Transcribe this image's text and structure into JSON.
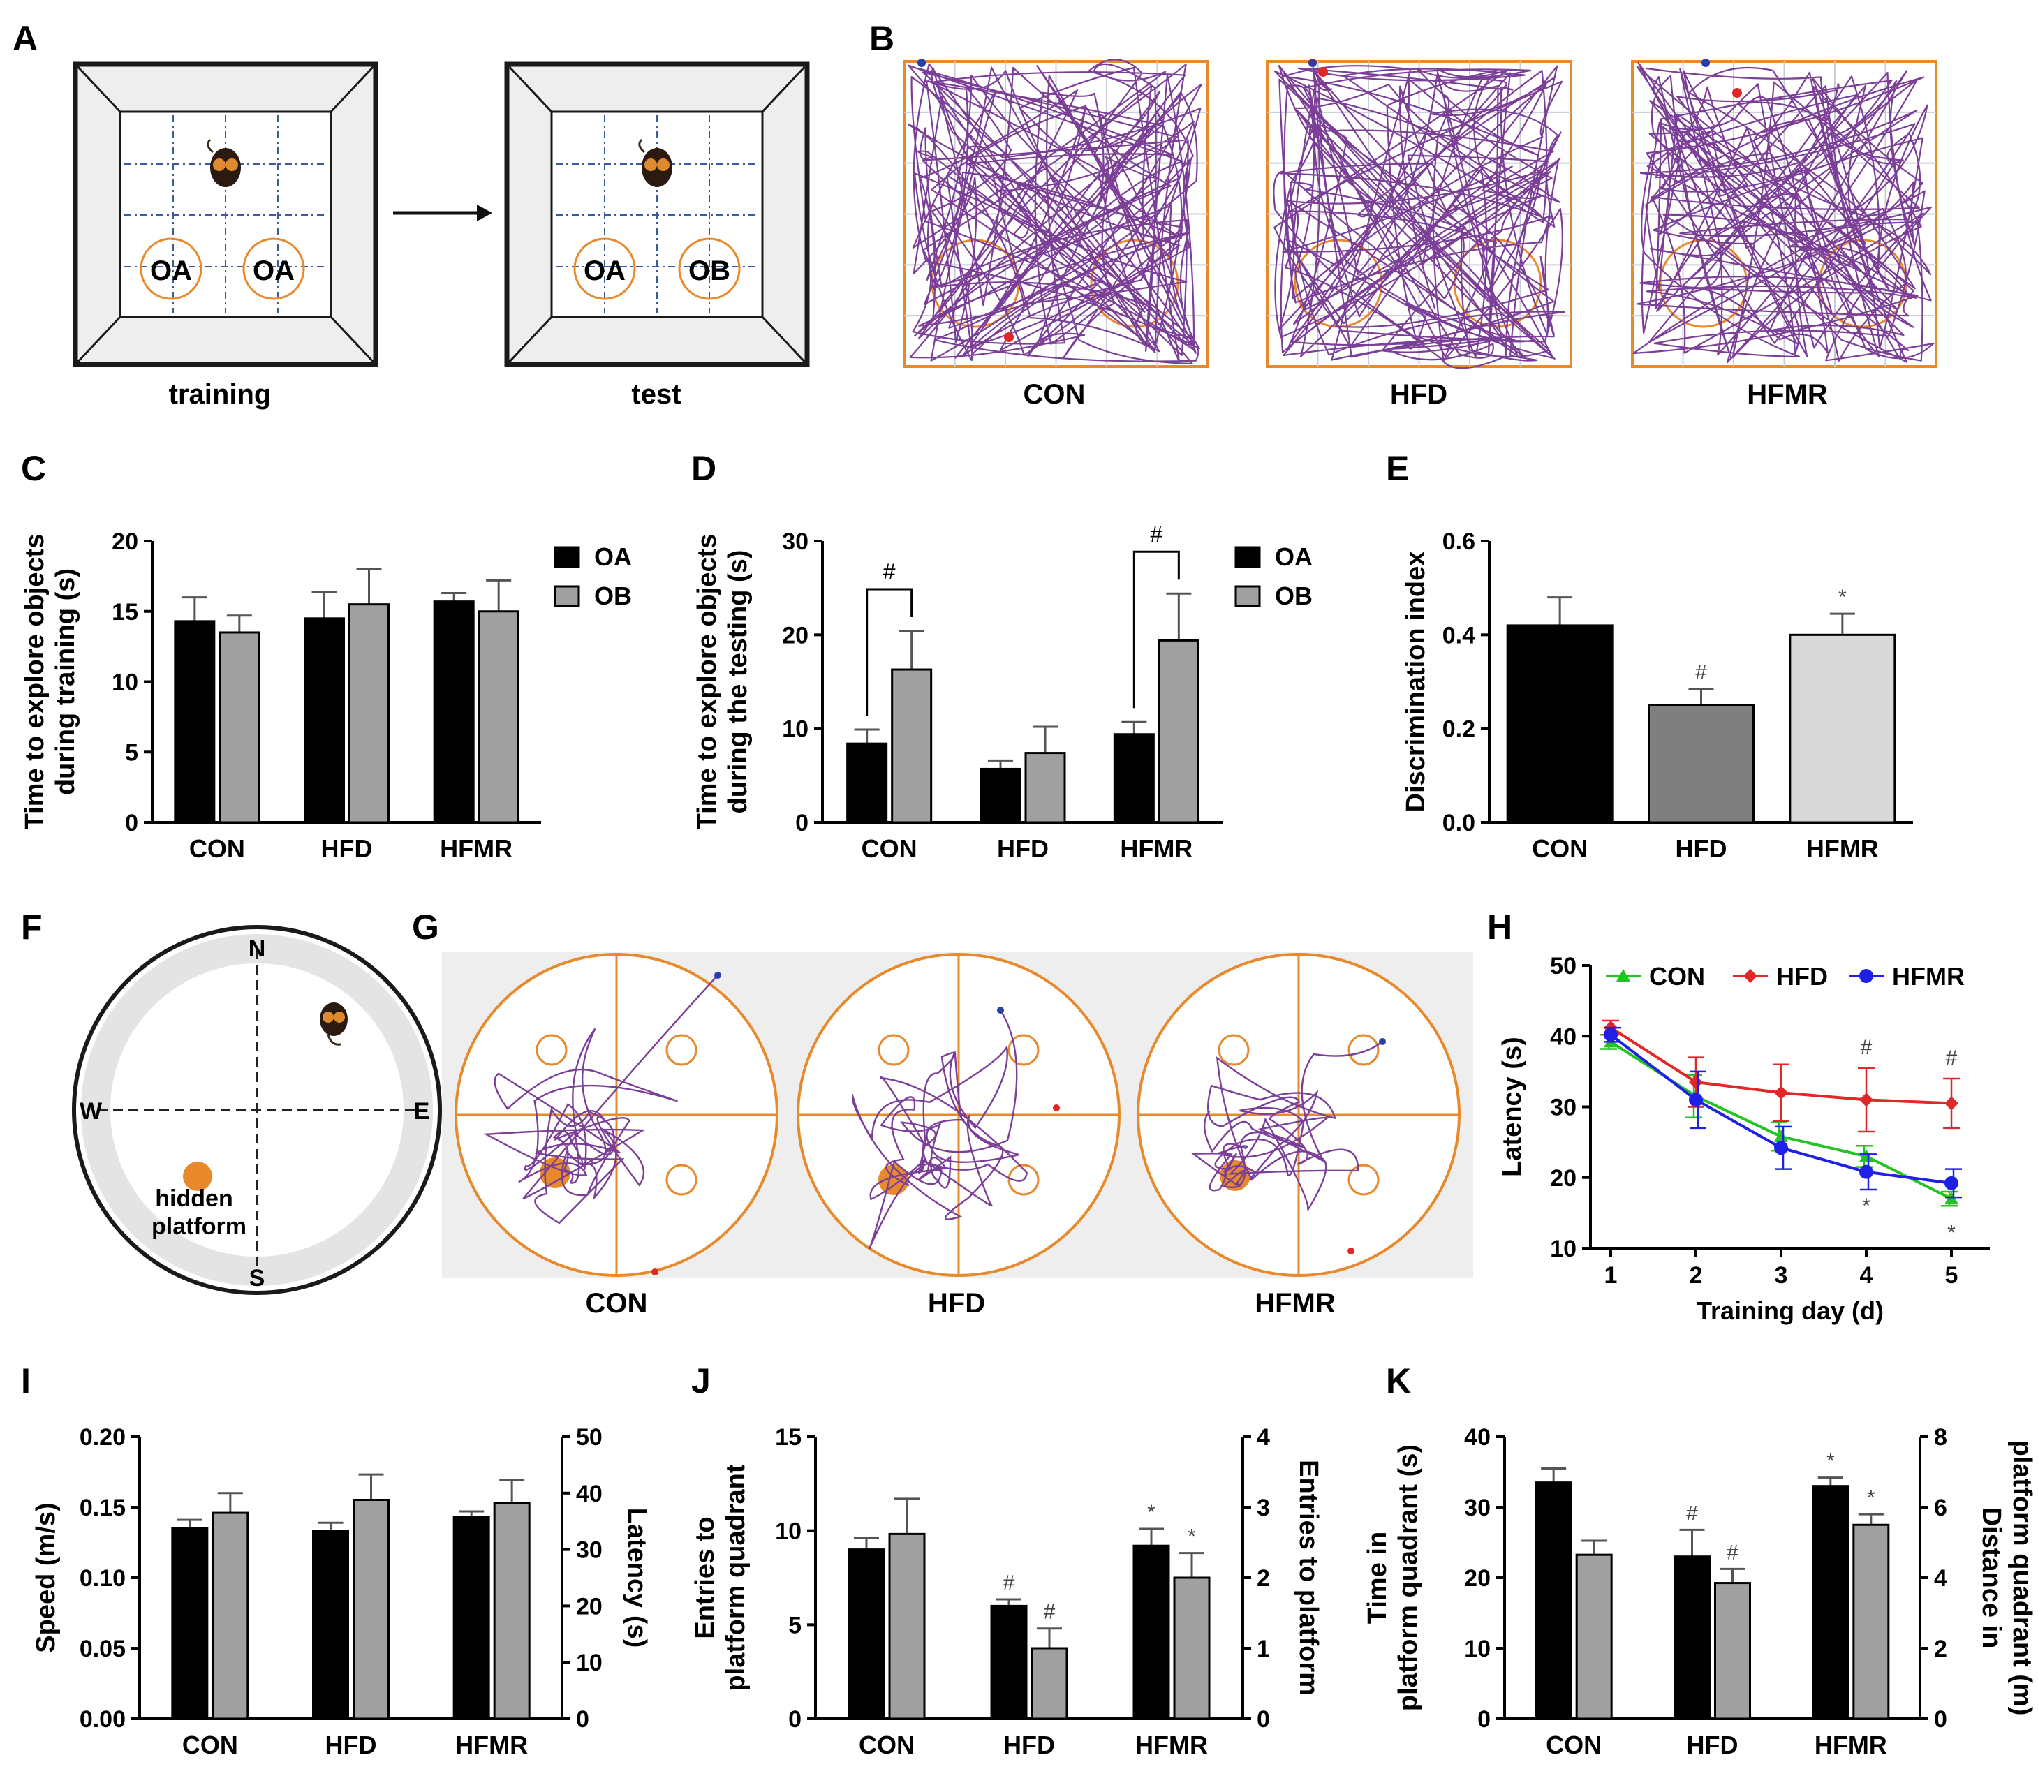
{
  "colors": {
    "black": "#000000",
    "gray": "#a0a0a0",
    "lightgray": "#d9d9d9",
    "darkgray": "#7f7f7f",
    "orange": "#e8892b",
    "purple": "#7b3f98",
    "green": "#22c322",
    "red": "#e32626",
    "blue": "#1f1fe6",
    "arena_fill": "#eeeeee"
  },
  "panelA": {
    "letter": "A",
    "training_label": "training",
    "test_label": "test",
    "obj_oa": "OA",
    "obj_ob": "OB"
  },
  "panelB": {
    "letter": "B",
    "labels": [
      "CON",
      "HFD",
      "HFMR"
    ]
  },
  "panelF": {
    "letter": "F",
    "n": "N",
    "s": "S",
    "w": "W",
    "e": "E",
    "hidden1": "hidden",
    "hidden2": "platform"
  },
  "panelG": {
    "letter": "G",
    "labels": [
      "CON",
      "HFD",
      "HFMR"
    ]
  },
  "chart_data": [
    {
      "id": "C",
      "letter": "C",
      "type": "bar",
      "categories": [
        "CON",
        "HFD",
        "HFMR"
      ],
      "series": [
        {
          "name": "OA",
          "values": [
            14.3,
            14.5,
            15.7
          ],
          "errors": [
            1.7,
            1.9,
            0.6
          ]
        },
        {
          "name": "OB",
          "values": [
            13.5,
            15.5,
            15.0
          ],
          "errors": [
            1.2,
            2.5,
            2.2
          ]
        }
      ],
      "ylabel": [
        "Time to explore objects",
        "during training (s)"
      ],
      "ylim": [
        0,
        20
      ],
      "yticks": [
        "0",
        "5",
        "10",
        "15",
        "20"
      ]
    },
    {
      "id": "D",
      "letter": "D",
      "type": "bar",
      "categories": [
        "CON",
        "HFD",
        "HFMR"
      ],
      "series": [
        {
          "name": "OA",
          "values": [
            8.4,
            5.7,
            9.4
          ],
          "errors": [
            1.5,
            0.9,
            1.3
          ]
        },
        {
          "name": "OB",
          "values": [
            16.3,
            7.4,
            19.4
          ],
          "errors": [
            4.1,
            2.8,
            5.0
          ]
        }
      ],
      "annotations": [
        "#",
        "#"
      ],
      "ylabel": [
        "Time to explore objects",
        "during the testing (s)"
      ],
      "ylim": [
        0,
        30
      ],
      "yticks": [
        "0",
        "10",
        "20",
        "30"
      ]
    },
    {
      "id": "E",
      "letter": "E",
      "type": "bar",
      "categories": [
        "CON",
        "HFD",
        "HFMR"
      ],
      "values": [
        0.42,
        0.25,
        0.4
      ],
      "errors": [
        0.06,
        0.035,
        0.045
      ],
      "marks": [
        "",
        "#",
        "*"
      ],
      "ylabel": [
        "Discrimination index"
      ],
      "ylim": [
        0,
        0.6
      ],
      "yticks": [
        "0.0",
        "0.2",
        "0.4",
        "0.6"
      ]
    },
    {
      "id": "H",
      "letter": "H",
      "type": "line",
      "x": [
        1,
        2,
        3,
        4,
        5
      ],
      "series": [
        {
          "name": "CON",
          "values": [
            39.2,
            31.5,
            25.8,
            23.0,
            17.0
          ],
          "errors": [
            1.0,
            3.0,
            2.0,
            1.5,
            1.0
          ]
        },
        {
          "name": "HFD",
          "values": [
            41.2,
            33.5,
            32.0,
            31.0,
            30.5
          ],
          "errors": [
            1.0,
            3.5,
            4.0,
            4.5,
            3.5
          ]
        },
        {
          "name": "HFMR",
          "values": [
            40.2,
            31.0,
            24.2,
            20.8,
            19.2
          ],
          "errors": [
            1.0,
            4.0,
            3.0,
            2.5,
            2.0
          ]
        }
      ],
      "marks_top": [
        "",
        "",
        "",
        "#",
        "#"
      ],
      "marks_bottom": [
        "",
        "",
        "",
        "*",
        "*"
      ],
      "xlabel": "Training day (d)",
      "ylabel": "Latency (s)",
      "ylim": [
        10,
        50
      ],
      "yticks": [
        "10",
        "20",
        "30",
        "40",
        "50"
      ],
      "xticks": [
        "1",
        "2",
        "3",
        "4",
        "5"
      ]
    },
    {
      "id": "I",
      "letter": "I",
      "type": "bar",
      "categories": [
        "CON",
        "HFD",
        "HFMR"
      ],
      "series": [
        {
          "name": "Speed (m/s)",
          "values": [
            0.135,
            0.133,
            0.143
          ],
          "errors": [
            0.006,
            0.006,
            0.004
          ]
        },
        {
          "name": "Latency (s)",
          "values": [
            36.5,
            38.8,
            38.3
          ],
          "errors": [
            3.5,
            4.5,
            4.0
          ]
        }
      ],
      "ylabel": "Speed (m/s)",
      "ylim": [
        0,
        0.2
      ],
      "yticks": [
        "0.00",
        "0.05",
        "0.10",
        "0.15",
        "0.20"
      ],
      "ylabel2": "Latency (s)",
      "ylim2": [
        0,
        50
      ],
      "yticks2": [
        "0",
        "10",
        "20",
        "30",
        "40",
        "50"
      ]
    },
    {
      "id": "J",
      "letter": "J",
      "type": "bar",
      "categories": [
        "CON",
        "HFD",
        "HFMR"
      ],
      "series": [
        {
          "name": "Entries to platform quadrant",
          "values": [
            9.0,
            6.0,
            9.2
          ],
          "errors": [
            0.6,
            0.35,
            0.9
          ],
          "marks": [
            "",
            "#",
            "*"
          ]
        },
        {
          "name": "Entries to platform",
          "values": [
            2.62,
            1.0,
            2.0
          ],
          "errors": [
            0.5,
            0.28,
            0.35
          ],
          "marks": [
            "",
            "#",
            "*"
          ]
        }
      ],
      "ylabel": [
        "Entries to",
        "platform quadrant"
      ],
      "ylim": [
        0,
        15
      ],
      "yticks": [
        "0",
        "5",
        "10",
        "15"
      ],
      "ylabel2": "Entries to platform",
      "ylim2": [
        0,
        4
      ],
      "yticks2": [
        "0",
        "1",
        "2",
        "3",
        "4"
      ]
    },
    {
      "id": "K",
      "letter": "K",
      "type": "bar",
      "categories": [
        "CON",
        "HFD",
        "HFMR"
      ],
      "series": [
        {
          "name": "Time in platform quadrant (s)",
          "values": [
            33.5,
            23.0,
            33.0
          ],
          "errors": [
            2.0,
            3.8,
            1.2
          ],
          "marks": [
            "",
            "#",
            "*"
          ]
        },
        {
          "name": "Distance in platform quadrant (m)",
          "values": [
            4.65,
            3.85,
            5.5
          ],
          "errors": [
            0.4,
            0.4,
            0.3
          ],
          "marks": [
            "",
            "#",
            "*"
          ]
        }
      ],
      "ylabel": [
        "Time in",
        "platform quadrant (s)"
      ],
      "ylim": [
        0,
        40
      ],
      "yticks": [
        "0",
        "10",
        "20",
        "30",
        "40"
      ],
      "ylabel2": [
        "Distance in",
        "platform quadrant (m)"
      ],
      "ylim2": [
        0,
        8
      ],
      "yticks2": [
        "0",
        "2",
        "4",
        "6",
        "8"
      ]
    }
  ]
}
